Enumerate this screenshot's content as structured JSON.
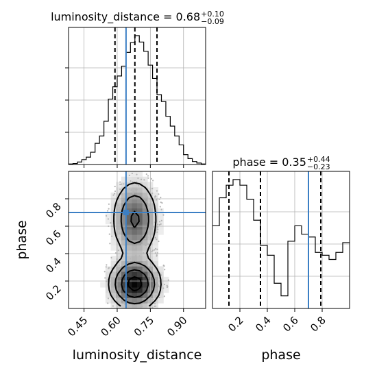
{
  "chart_data": {
    "type": "corner",
    "parameters": [
      "luminosity_distance",
      "phase"
    ],
    "truth": {
      "luminosity_distance": 0.64,
      "phase": 0.7
    },
    "panels": [
      {
        "id": "hist_luminosity_distance",
        "type": "histogram",
        "title_prefix": "luminosity_distance = 0.68",
        "title_sup": "+0.10",
        "title_sub": "−0.09",
        "median": 0.68,
        "quantiles": [
          0.59,
          0.68,
          0.78
        ],
        "xlim": [
          0.38,
          1.0
        ],
        "xticks": [
          0.45,
          0.6,
          0.75,
          0.9
        ],
        "bins_edges": [
          0.38,
          0.4,
          0.42,
          0.44,
          0.46,
          0.48,
          0.5,
          0.52,
          0.54,
          0.56,
          0.58,
          0.6,
          0.62,
          0.64,
          0.66,
          0.68,
          0.7,
          0.72,
          0.74,
          0.76,
          0.78,
          0.8,
          0.82,
          0.84,
          0.86,
          0.88,
          0.9,
          0.92,
          0.94,
          0.96,
          0.98,
          1.0
        ],
        "bins_counts": [
          1,
          2,
          5,
          10,
          15,
          25,
          43,
          58,
          88,
          133,
          158,
          180,
          200,
          228,
          248,
          262,
          249,
          230,
          202,
          175,
          142,
          128,
          98,
          78,
          58,
          40,
          20,
          12,
          6,
          3,
          1
        ]
      },
      {
        "id": "hist_phase",
        "type": "histogram",
        "title_prefix": "phase = 0.35",
        "title_sup": "+0.44",
        "title_sub": "−0.23",
        "median": 0.35,
        "quantiles": [
          0.12,
          0.35,
          0.79
        ],
        "xlim": [
          0.0,
          1.0
        ],
        "xticks": [
          0.2,
          0.4,
          0.6,
          0.8
        ],
        "bins_edges": [
          0.0,
          0.05,
          0.1,
          0.15,
          0.2,
          0.25,
          0.3,
          0.35,
          0.4,
          0.45,
          0.5,
          0.55,
          0.6,
          0.65,
          0.7,
          0.75,
          0.8,
          0.85,
          0.9,
          0.95,
          1.0
        ],
        "bins_counts": [
          59,
          79,
          88,
          92,
          88,
          78,
          63,
          45,
          38,
          18,
          9,
          48,
          59,
          53,
          51,
          40,
          38,
          35,
          40,
          47
        ]
      },
      {
        "id": "scatter_phase_vs_luminosity_distance",
        "type": "2d-density",
        "xlabel": "luminosity_distance",
        "ylabel": "phase",
        "xlim": [
          0.38,
          1.0
        ],
        "ylim": [
          0.0,
          1.0
        ],
        "xticks": [
          0.45,
          0.6,
          0.75,
          0.9
        ],
        "yticks": [
          0.2,
          0.4,
          0.6,
          0.8
        ],
        "peaks": [
          {
            "x": 0.68,
            "y": 0.18,
            "weight": 1.0
          },
          {
            "x": 0.68,
            "y": 0.65,
            "weight": 0.6
          }
        ]
      }
    ],
    "grid": true
  }
}
